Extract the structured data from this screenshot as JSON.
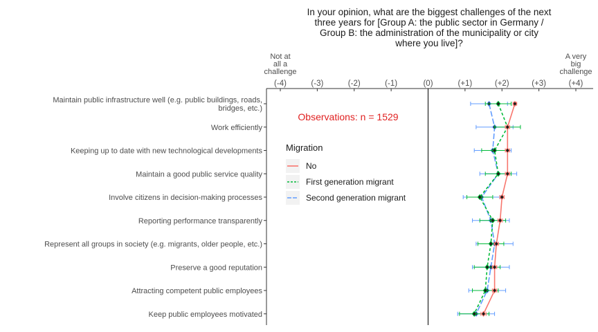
{
  "chart_data": {
    "type": "line",
    "title": [
      "In your opinion, what are the biggest challenges of the next",
      "three years for [Group A: the public sector in Germany /",
      "Group B: the administration of the municipality or city",
      "where you live]?"
    ],
    "x_ticks": [
      "(-4)",
      "(-3)",
      "(-2)",
      "(-1)",
      "(0)",
      "(+1)",
      "(+2)",
      "(+3)",
      "(+4)"
    ],
    "x_range": [
      -4,
      4
    ],
    "x_left_label": [
      "Not at",
      "all a",
      "challenge"
    ],
    "x_right_label": [
      "A very",
      "big",
      "challenge"
    ],
    "categories": [
      [
        "Maintain public infrastructure well (e.g. public buildings, roads,",
        "bridges, etc.)"
      ],
      [
        "Work efficiently"
      ],
      [
        "Keeping up to date with new technological developments"
      ],
      [
        "Maintain a good public service quality"
      ],
      [
        "Involve citizens in decision-making processes"
      ],
      [
        "Reporting performance transparently"
      ],
      [
        "Represent all groups in society (e.g. migrants, older people, etc.)"
      ],
      [
        "Preserve a good reputation"
      ],
      [
        "Attracting competent public employees"
      ],
      [
        "Keep public employees motivated"
      ]
    ],
    "annotation": "Observations: n = 1529",
    "legend_title": "Migration",
    "legend_position": "left-inside",
    "series": [
      {
        "name": "No",
        "color": "#f8766d",
        "dash": "solid",
        "values": [
          2.35,
          2.15,
          2.15,
          2.15,
          2.0,
          1.95,
          1.85,
          1.8,
          1.8,
          1.5
        ],
        "ci": [
          0.05,
          0.06,
          0.06,
          0.06,
          0.06,
          0.06,
          0.06,
          0.06,
          0.06,
          0.07
        ]
      },
      {
        "name": "First generation migrant",
        "color": "#00ba38",
        "dash": "dashed",
        "values": [
          1.9,
          2.15,
          1.8,
          1.9,
          1.4,
          1.75,
          1.7,
          1.6,
          1.55,
          1.25
        ],
        "ci": [
          0.35,
          0.35,
          0.35,
          0.35,
          0.35,
          0.35,
          0.35,
          0.35,
          0.35,
          0.4
        ]
      },
      {
        "name": "Second generation migrant",
        "color": "#619cff",
        "dash": "longdash",
        "values": [
          1.65,
          1.8,
          1.75,
          1.9,
          1.45,
          1.7,
          1.8,
          1.7,
          1.6,
          1.3
        ],
        "ci": [
          0.5,
          0.5,
          0.5,
          0.5,
          0.5,
          0.5,
          0.5,
          0.5,
          0.5,
          0.5
        ]
      }
    ]
  }
}
